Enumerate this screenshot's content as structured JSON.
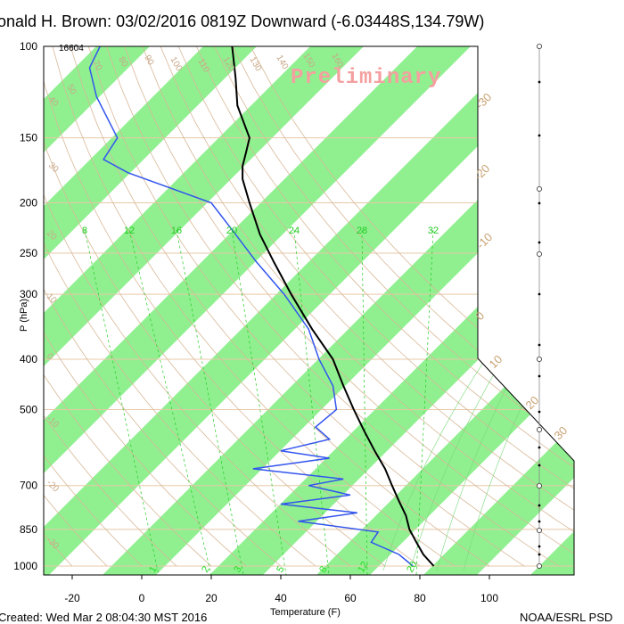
{
  "title": "onald H. Brown: 03/02/2016 0819Z Downward (-6.03448S,134.79W)",
  "watermark": "Preliminary",
  "height_label": "16604",
  "footer_left": "Created: Wed Mar  2 08:04:30 MST 2016",
  "footer_right": "NOAA/ESRL PSD",
  "colors": {
    "isotherm_band": "#90f090",
    "temperature": "#000000",
    "dewpoint": "#3355ee",
    "dry_adiabat": "#d8b898",
    "mixing_ratio": "#22cc22",
    "isobar": "#e8c8a8"
  },
  "chart_data": {
    "type": "skew-t",
    "xlabel": "Temperature (F)",
    "ylabel": "P (hPa)",
    "x_ticks": [
      "-20",
      "0",
      "20",
      "40",
      "60",
      "80",
      "100"
    ],
    "x_tick_values": [
      -20,
      0,
      20,
      40,
      60,
      80,
      100
    ],
    "y_ticks": [
      "100",
      "150",
      "200",
      "250",
      "300",
      "400",
      "500",
      "700",
      "850",
      "1000"
    ],
    "y_tick_values": [
      100,
      150,
      200,
      250,
      300,
      400,
      500,
      700,
      850,
      1000
    ],
    "ylim": [
      100,
      1000
    ],
    "mixing_ratio_top_labels": [
      "8",
      "12",
      "16",
      "20",
      "24",
      "28",
      "32"
    ],
    "mixing_ratio_bottom_labels": [
      "1",
      "2",
      "3",
      "5",
      "8",
      "12",
      "20"
    ],
    "dry_adiabat_labels": [
      "50",
      "70",
      "80",
      "90",
      "100",
      "110",
      "120",
      "130",
      "140",
      "150",
      "160"
    ],
    "isotherm_labels_c": [
      "-30",
      "-20",
      "-10",
      "0",
      "10",
      "20",
      "30"
    ],
    "isotherm_labels_left": [
      "40",
      "30",
      "20",
      "10",
      "0",
      "-10",
      "-20",
      "-30"
    ],
    "series": [
      {
        "name": "temperature",
        "values": [
          {
            "p": 100,
            "t": 26
          },
          {
            "p": 115,
            "t": 27
          },
          {
            "p": 130,
            "t": 27.5
          },
          {
            "p": 150,
            "t": 31
          },
          {
            "p": 160,
            "t": 30
          },
          {
            "p": 170,
            "t": 29
          },
          {
            "p": 180,
            "t": 29
          },
          {
            "p": 200,
            "t": 31
          },
          {
            "p": 230,
            "t": 34
          },
          {
            "p": 260,
            "t": 38
          },
          {
            "p": 300,
            "t": 43
          },
          {
            "p": 350,
            "t": 49
          },
          {
            "p": 400,
            "t": 55
          },
          {
            "p": 450,
            "t": 58
          },
          {
            "p": 500,
            "t": 61
          },
          {
            "p": 550,
            "t": 64
          },
          {
            "p": 600,
            "t": 67
          },
          {
            "p": 650,
            "t": 70
          },
          {
            "p": 700,
            "t": 72
          },
          {
            "p": 750,
            "t": 74
          },
          {
            "p": 800,
            "t": 76
          },
          {
            "p": 850,
            "t": 77
          },
          {
            "p": 900,
            "t": 79
          },
          {
            "p": 950,
            "t": 81
          },
          {
            "p": 1000,
            "t": 84
          }
        ]
      },
      {
        "name": "dewpoint",
        "values": [
          {
            "p": 100,
            "t": -12
          },
          {
            "p": 110,
            "t": -15
          },
          {
            "p": 125,
            "t": -13
          },
          {
            "p": 150,
            "t": -7
          },
          {
            "p": 165,
            "t": -11
          },
          {
            "p": 175,
            "t": -4
          },
          {
            "p": 200,
            "t": 20
          },
          {
            "p": 230,
            "t": 27
          },
          {
            "p": 260,
            "t": 33
          },
          {
            "p": 300,
            "t": 41
          },
          {
            "p": 350,
            "t": 48
          },
          {
            "p": 400,
            "t": 51
          },
          {
            "p": 450,
            "t": 55
          },
          {
            "p": 500,
            "t": 56
          },
          {
            "p": 540,
            "t": 50
          },
          {
            "p": 570,
            "t": 54
          },
          {
            "p": 600,
            "t": 40
          },
          {
            "p": 620,
            "t": 54
          },
          {
            "p": 650,
            "t": 32
          },
          {
            "p": 680,
            "t": 58
          },
          {
            "p": 700,
            "t": 48
          },
          {
            "p": 730,
            "t": 60
          },
          {
            "p": 760,
            "t": 40
          },
          {
            "p": 790,
            "t": 62
          },
          {
            "p": 820,
            "t": 45
          },
          {
            "p": 860,
            "t": 68
          },
          {
            "p": 900,
            "t": 66
          },
          {
            "p": 950,
            "t": 74
          },
          {
            "p": 1000,
            "t": 78
          }
        ]
      }
    ]
  }
}
